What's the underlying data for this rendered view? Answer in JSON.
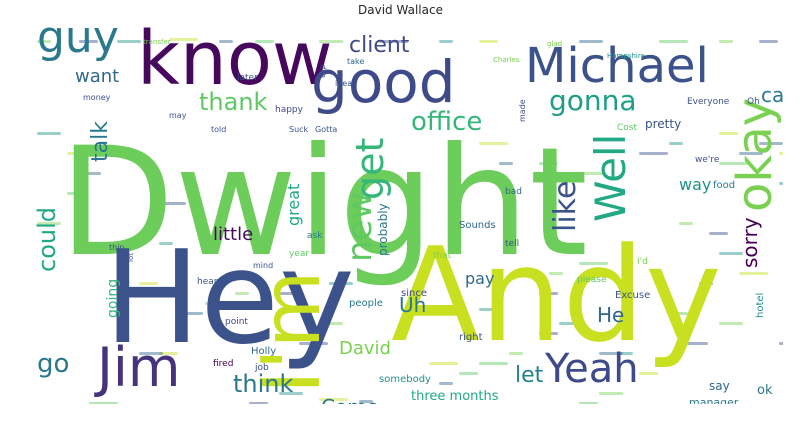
{
  "title": "David Wallace",
  "words": [
    {
      "text": "Dwight",
      "color": "#6ccd5a"
    },
    {
      "text": "Hey",
      "color": "#3b528b"
    },
    {
      "text": "I'm",
      "color": "#c8e020"
    },
    {
      "text": "Andy",
      "color": "#c8e020"
    },
    {
      "text": "know",
      "color": "#46085c"
    },
    {
      "text": "good",
      "color": "#3e4a89"
    },
    {
      "text": "Michael",
      "color": "#3b528b"
    },
    {
      "text": "guy",
      "color": "#2a788e"
    },
    {
      "text": "Jim",
      "color": "#46337e"
    },
    {
      "text": "Yeah",
      "color": "#3e4a89"
    },
    {
      "text": "okay",
      "color": "#7ad151"
    },
    {
      "text": "Well",
      "color": "#22a884"
    },
    {
      "text": "new",
      "color": "#5ec962"
    },
    {
      "text": "get",
      "color": "#35b779"
    },
    {
      "text": "like",
      "color": "#3b528b"
    },
    {
      "text": "office",
      "color": "#35b779"
    },
    {
      "text": "thank",
      "color": "#5ec962"
    },
    {
      "text": "gonna",
      "color": "#1f9e89"
    },
    {
      "text": "client",
      "color": "#3e4a89"
    },
    {
      "text": "want",
      "color": "#31688e"
    },
    {
      "text": "call",
      "color": "#2a788e"
    },
    {
      "text": "talk",
      "color": "#2a788e"
    },
    {
      "text": "could",
      "color": "#22a884"
    },
    {
      "text": "think",
      "color": "#2a788e"
    },
    {
      "text": "go",
      "color": "#2a788e"
    },
    {
      "text": "Come",
      "color": "#2a788e"
    },
    {
      "text": "let",
      "color": "#26828e"
    },
    {
      "text": "sorry",
      "color": "#440154"
    },
    {
      "text": "Uh",
      "color": "#2a788e"
    },
    {
      "text": "He",
      "color": "#31688e"
    },
    {
      "text": "David",
      "color": "#7ad151"
    },
    {
      "text": "little",
      "color": "#46085c"
    },
    {
      "text": "pay",
      "color": "#31688e"
    },
    {
      "text": "going",
      "color": "#35b779"
    },
    {
      "text": "way",
      "color": "#20928c"
    },
    {
      "text": "great",
      "color": "#22a884"
    },
    {
      "text": "probably",
      "color": "#2a788e"
    },
    {
      "text": "pretty",
      "color": "#3b528b"
    },
    {
      "text": "three months",
      "color": "#22a884"
    },
    {
      "text": "manager",
      "color": "#2a788e"
    },
    {
      "text": "say",
      "color": "#31688e"
    },
    {
      "text": "ok",
      "color": "#2a788e"
    },
    {
      "text": "hotel",
      "color": "#20928c"
    },
    {
      "text": "food",
      "color": "#2a788e"
    },
    {
      "text": "Sounds",
      "color": "#31688e"
    },
    {
      "text": "Excuse",
      "color": "#3b528b"
    },
    {
      "text": "people",
      "color": "#2a788e"
    },
    {
      "text": "since",
      "color": "#3e4a89"
    },
    {
      "text": "right",
      "color": "#3b528b"
    },
    {
      "text": "please",
      "color": "#5ec962"
    },
    {
      "text": "somebody",
      "color": "#21918c"
    },
    {
      "text": "Holly",
      "color": "#31688e"
    },
    {
      "text": "fired",
      "color": "#440154"
    },
    {
      "text": "job",
      "color": "#3e4a89"
    },
    {
      "text": "point",
      "color": "#3e4a89"
    },
    {
      "text": "heard",
      "color": "#3b528b"
    },
    {
      "text": "year",
      "color": "#5ec962"
    },
    {
      "text": "mind",
      "color": "#3b528b"
    },
    {
      "text": "ask",
      "color": "#2a788e"
    },
    {
      "text": "tell",
      "color": "#3b528b"
    },
    {
      "text": "bad",
      "color": "#31688e"
    },
    {
      "text": "that",
      "color": "#7ad151"
    },
    {
      "text": "told",
      "color": "#3b528b"
    },
    {
      "text": "may",
      "color": "#3b528b"
    },
    {
      "text": "Cost",
      "color": "#5ec962"
    },
    {
      "text": "happy",
      "color": "#3e4a89"
    },
    {
      "text": "later",
      "color": "#3b528b"
    },
    {
      "text": "take",
      "color": "#31688e"
    },
    {
      "text": "idea",
      "color": "#3b528b"
    },
    {
      "text": "trip",
      "color": "#3b528b"
    },
    {
      "text": "made",
      "color": "#3b528b"
    },
    {
      "text": "money",
      "color": "#3b528b"
    },
    {
      "text": "Everyone",
      "color": "#3b528b"
    },
    {
      "text": "Oh",
      "color": "#3b528b"
    },
    {
      "text": "Gotta",
      "color": "#3b528b"
    },
    {
      "text": "Suck",
      "color": "#3b528b"
    },
    {
      "text": "we're",
      "color": "#3b528b"
    },
    {
      "text": "I'd",
      "color": "#7ad151"
    },
    {
      "text": "give",
      "color": "#3b528b"
    },
    {
      "text": "sale",
      "color": "#3b528b"
    },
    {
      "text": "second",
      "color": "#3b528b"
    },
    {
      "text": "enough",
      "color": "#3b528b"
    },
    {
      "text": "last",
      "color": "#3b528b"
    },
    {
      "text": "everybody",
      "color": "#c8e020"
    },
    {
      "text": "thin",
      "color": "#3b528b"
    },
    {
      "text": "lot",
      "color": "#3b528b"
    },
    {
      "text": "Charles",
      "color": "#7ad151"
    },
    {
      "text": "Hampshire",
      "color": "#20928c"
    },
    {
      "text": "transfer",
      "color": "#7ad151"
    },
    {
      "text": "glad",
      "color": "#7ad151"
    }
  ]
}
